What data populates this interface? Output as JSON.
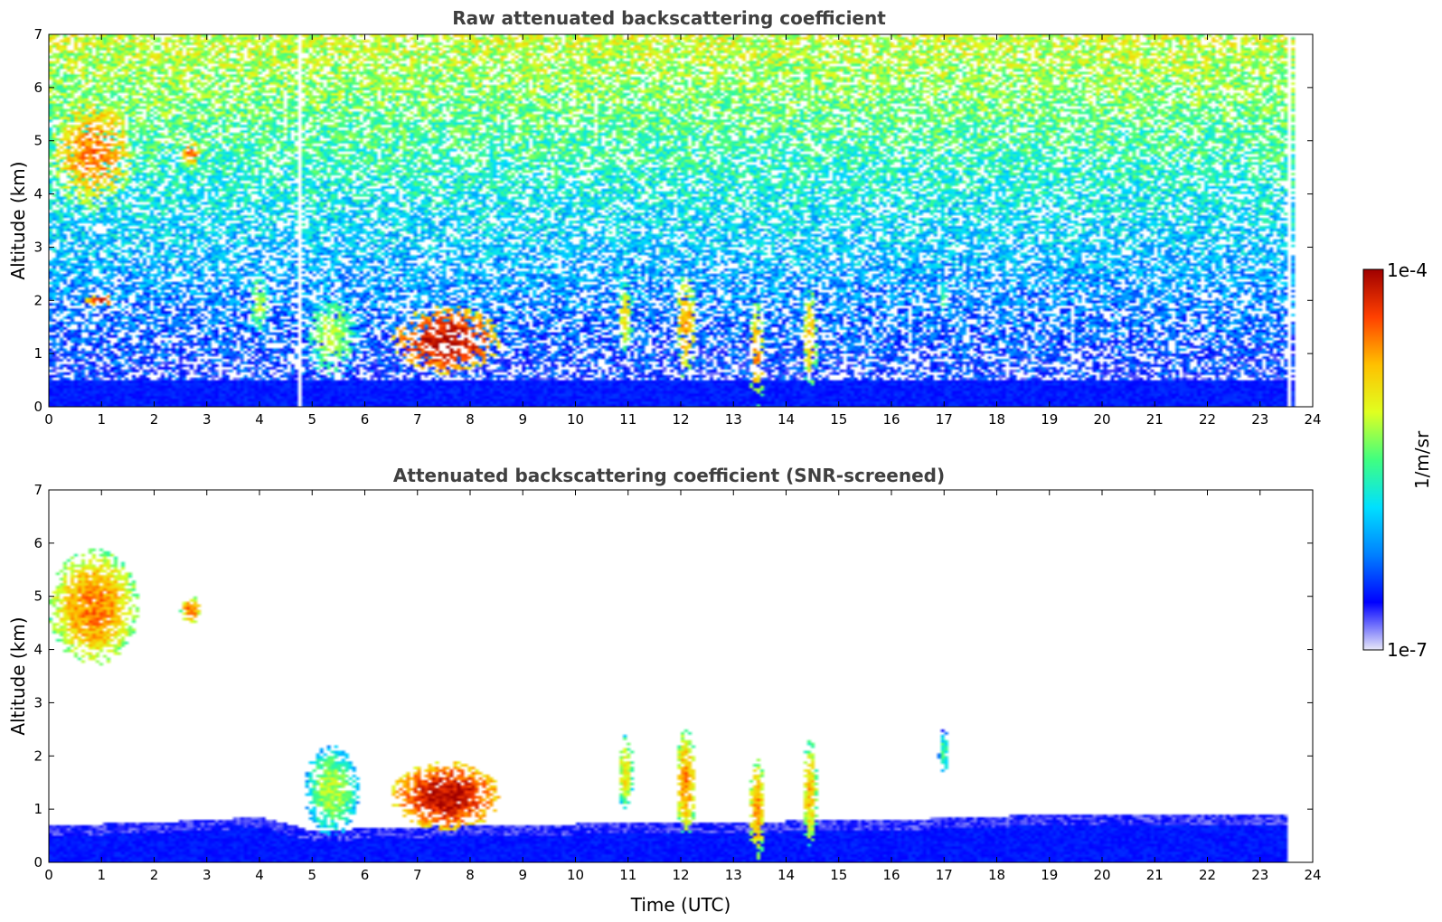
{
  "chart_data": [
    {
      "type": "heatmap",
      "title": "Raw attenuated backscattering coefficient",
      "xlabel": "",
      "ylabel": "Altitude (km)",
      "xlim": [
        0,
        24
      ],
      "ylim": [
        0,
        7
      ],
      "xticks": [
        "0",
        "1",
        "2",
        "3",
        "4",
        "5",
        "6",
        "7",
        "8",
        "9",
        "10",
        "11",
        "12",
        "13",
        "14",
        "15",
        "16",
        "17",
        "18",
        "19",
        "20",
        "21",
        "22",
        "23",
        "24"
      ],
      "yticks": [
        "0",
        "1",
        "2",
        "3",
        "4",
        "5",
        "6",
        "7"
      ],
      "screened": false,
      "data_gaps_hours": [
        [
          4.72,
          4.82
        ],
        [
          23.52,
          23.58
        ],
        [
          23.66,
          24.0
        ]
      ],
      "features": [
        {
          "kind": "aerosol layer",
          "t0": 0.0,
          "t1": 1.7,
          "zmin": 3.7,
          "zmax": 5.9,
          "level": 0.82
        },
        {
          "kind": "aerosol layer",
          "t0": 2.5,
          "t1": 2.9,
          "zmin": 4.5,
          "zmax": 5.0,
          "level": 0.85
        },
        {
          "kind": "cloud",
          "t0": 0.7,
          "t1": 1.3,
          "zmin": 1.9,
          "zmax": 2.1,
          "level": 0.95
        },
        {
          "kind": "plume",
          "t0": 3.8,
          "t1": 4.2,
          "zmin": 1.3,
          "zmax": 2.6,
          "level": 0.6
        },
        {
          "kind": "dust",
          "t0": 4.85,
          "t1": 5.9,
          "zmin": 0.5,
          "zmax": 2.2,
          "level": 0.6
        },
        {
          "kind": "cloud",
          "t0": 6.5,
          "t1": 8.6,
          "zmin": 0.6,
          "zmax": 1.9,
          "level": 0.98
        },
        {
          "kind": "plume",
          "t0": 10.8,
          "t1": 11.1,
          "zmin": 1.0,
          "zmax": 2.4,
          "level": 0.7
        },
        {
          "kind": "plume",
          "t0": 11.9,
          "t1": 12.3,
          "zmin": 0.5,
          "zmax": 2.5,
          "level": 0.8
        },
        {
          "kind": "plume",
          "t0": 13.3,
          "t1": 13.6,
          "zmin": 0.0,
          "zmax": 2.0,
          "level": 0.8
        },
        {
          "kind": "plume",
          "t0": 14.3,
          "t1": 14.6,
          "zmin": 0.3,
          "zmax": 2.3,
          "level": 0.75
        },
        {
          "kind": "plume",
          "t0": 16.9,
          "t1": 17.1,
          "zmin": 1.6,
          "zmax": 2.5,
          "level": 0.5
        }
      ]
    },
    {
      "type": "heatmap",
      "title": "Attenuated backscattering coefficient (SNR-screened)",
      "xlabel": "Time (UTC)",
      "ylabel": "Altitude (km)",
      "xlim": [
        0,
        24
      ],
      "ylim": [
        0,
        7
      ],
      "xticks": [
        "0",
        "1",
        "2",
        "3",
        "4",
        "5",
        "6",
        "7",
        "8",
        "9",
        "10",
        "11",
        "12",
        "13",
        "14",
        "15",
        "16",
        "17",
        "18",
        "19",
        "20",
        "21",
        "22",
        "23",
        "24"
      ],
      "yticks": [
        "0",
        "1",
        "2",
        "3",
        "4",
        "5",
        "6",
        "7"
      ],
      "screened": true,
      "boundary_layer_top_km": [
        [
          0,
          0.7
        ],
        [
          2,
          0.75
        ],
        [
          4,
          0.85
        ],
        [
          5,
          0.6
        ],
        [
          8,
          0.7
        ],
        [
          12,
          0.75
        ],
        [
          16,
          0.8
        ],
        [
          19,
          0.9
        ],
        [
          23.5,
          0.9
        ]
      ],
      "features": [
        {
          "kind": "aerosol layer",
          "t0": 0.0,
          "t1": 1.7,
          "zmin": 3.7,
          "zmax": 5.9,
          "level": 0.82
        },
        {
          "kind": "aerosol layer",
          "t0": 2.5,
          "t1": 2.9,
          "zmin": 4.5,
          "zmax": 5.0,
          "level": 0.85
        },
        {
          "kind": "dust",
          "t0": 4.85,
          "t1": 5.9,
          "zmin": 0.5,
          "zmax": 2.2,
          "level": 0.6
        },
        {
          "kind": "cloud",
          "t0": 6.5,
          "t1": 8.6,
          "zmin": 0.6,
          "zmax": 1.9,
          "level": 0.98
        },
        {
          "kind": "plume",
          "t0": 10.8,
          "t1": 11.1,
          "zmin": 1.0,
          "zmax": 2.4,
          "level": 0.7
        },
        {
          "kind": "plume",
          "t0": 11.9,
          "t1": 12.3,
          "zmin": 0.5,
          "zmax": 2.5,
          "level": 0.8
        },
        {
          "kind": "plume",
          "t0": 13.3,
          "t1": 13.6,
          "zmin": 0.0,
          "zmax": 2.0,
          "level": 0.8
        },
        {
          "kind": "plume",
          "t0": 14.3,
          "t1": 14.6,
          "zmin": 0.3,
          "zmax": 2.3,
          "level": 0.75
        },
        {
          "kind": "plume",
          "t0": 16.9,
          "t1": 17.1,
          "zmin": 1.6,
          "zmax": 2.5,
          "level": 0.5
        }
      ]
    }
  ],
  "colorbar": {
    "label": "1/m/sr",
    "max_label": "1e-4",
    "min_label": "1e-7",
    "colormap": [
      "#e8e8f8",
      "#0000ff",
      "#0080ff",
      "#00e0ff",
      "#40ff80",
      "#e0ff20",
      "#ffc000",
      "#ff4000",
      "#a00000"
    ]
  }
}
